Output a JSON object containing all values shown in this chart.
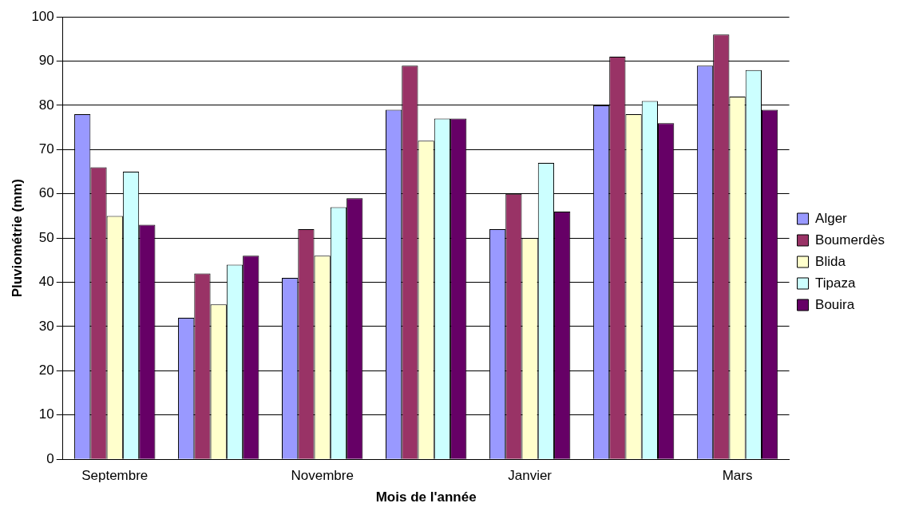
{
  "chart_data": {
    "type": "bar",
    "xlabel": "Mois de l'année",
    "ylabel": "Pluviométrie (mm)",
    "categories": [
      "Septembre",
      null,
      "Novembre",
      null,
      "Janvier",
      null,
      "Mars"
    ],
    "series": [
      {
        "name": "Alger",
        "color": "#9999ff",
        "values": [
          78,
          32,
          41,
          79,
          52,
          80,
          89
        ]
      },
      {
        "name": "Boumerdès",
        "color": "#993366",
        "values": [
          66,
          42,
          52,
          89,
          60,
          91,
          96
        ]
      },
      {
        "name": "Blida",
        "color": "#ffffcc",
        "values": [
          55,
          35,
          46,
          72,
          50,
          78,
          82
        ]
      },
      {
        "name": "Tipaza",
        "color": "#ccffff",
        "values": [
          65,
          44,
          57,
          77,
          67,
          81,
          88
        ]
      },
      {
        "name": "Bouira",
        "color": "#660066",
        "values": [
          53,
          46,
          59,
          77,
          56,
          76,
          79
        ]
      }
    ],
    "ylim": [
      0,
      100
    ],
    "yticks": [
      0,
      10,
      20,
      30,
      40,
      50,
      60,
      70,
      80,
      90,
      100
    ],
    "grid": "y",
    "legend": "right"
  }
}
